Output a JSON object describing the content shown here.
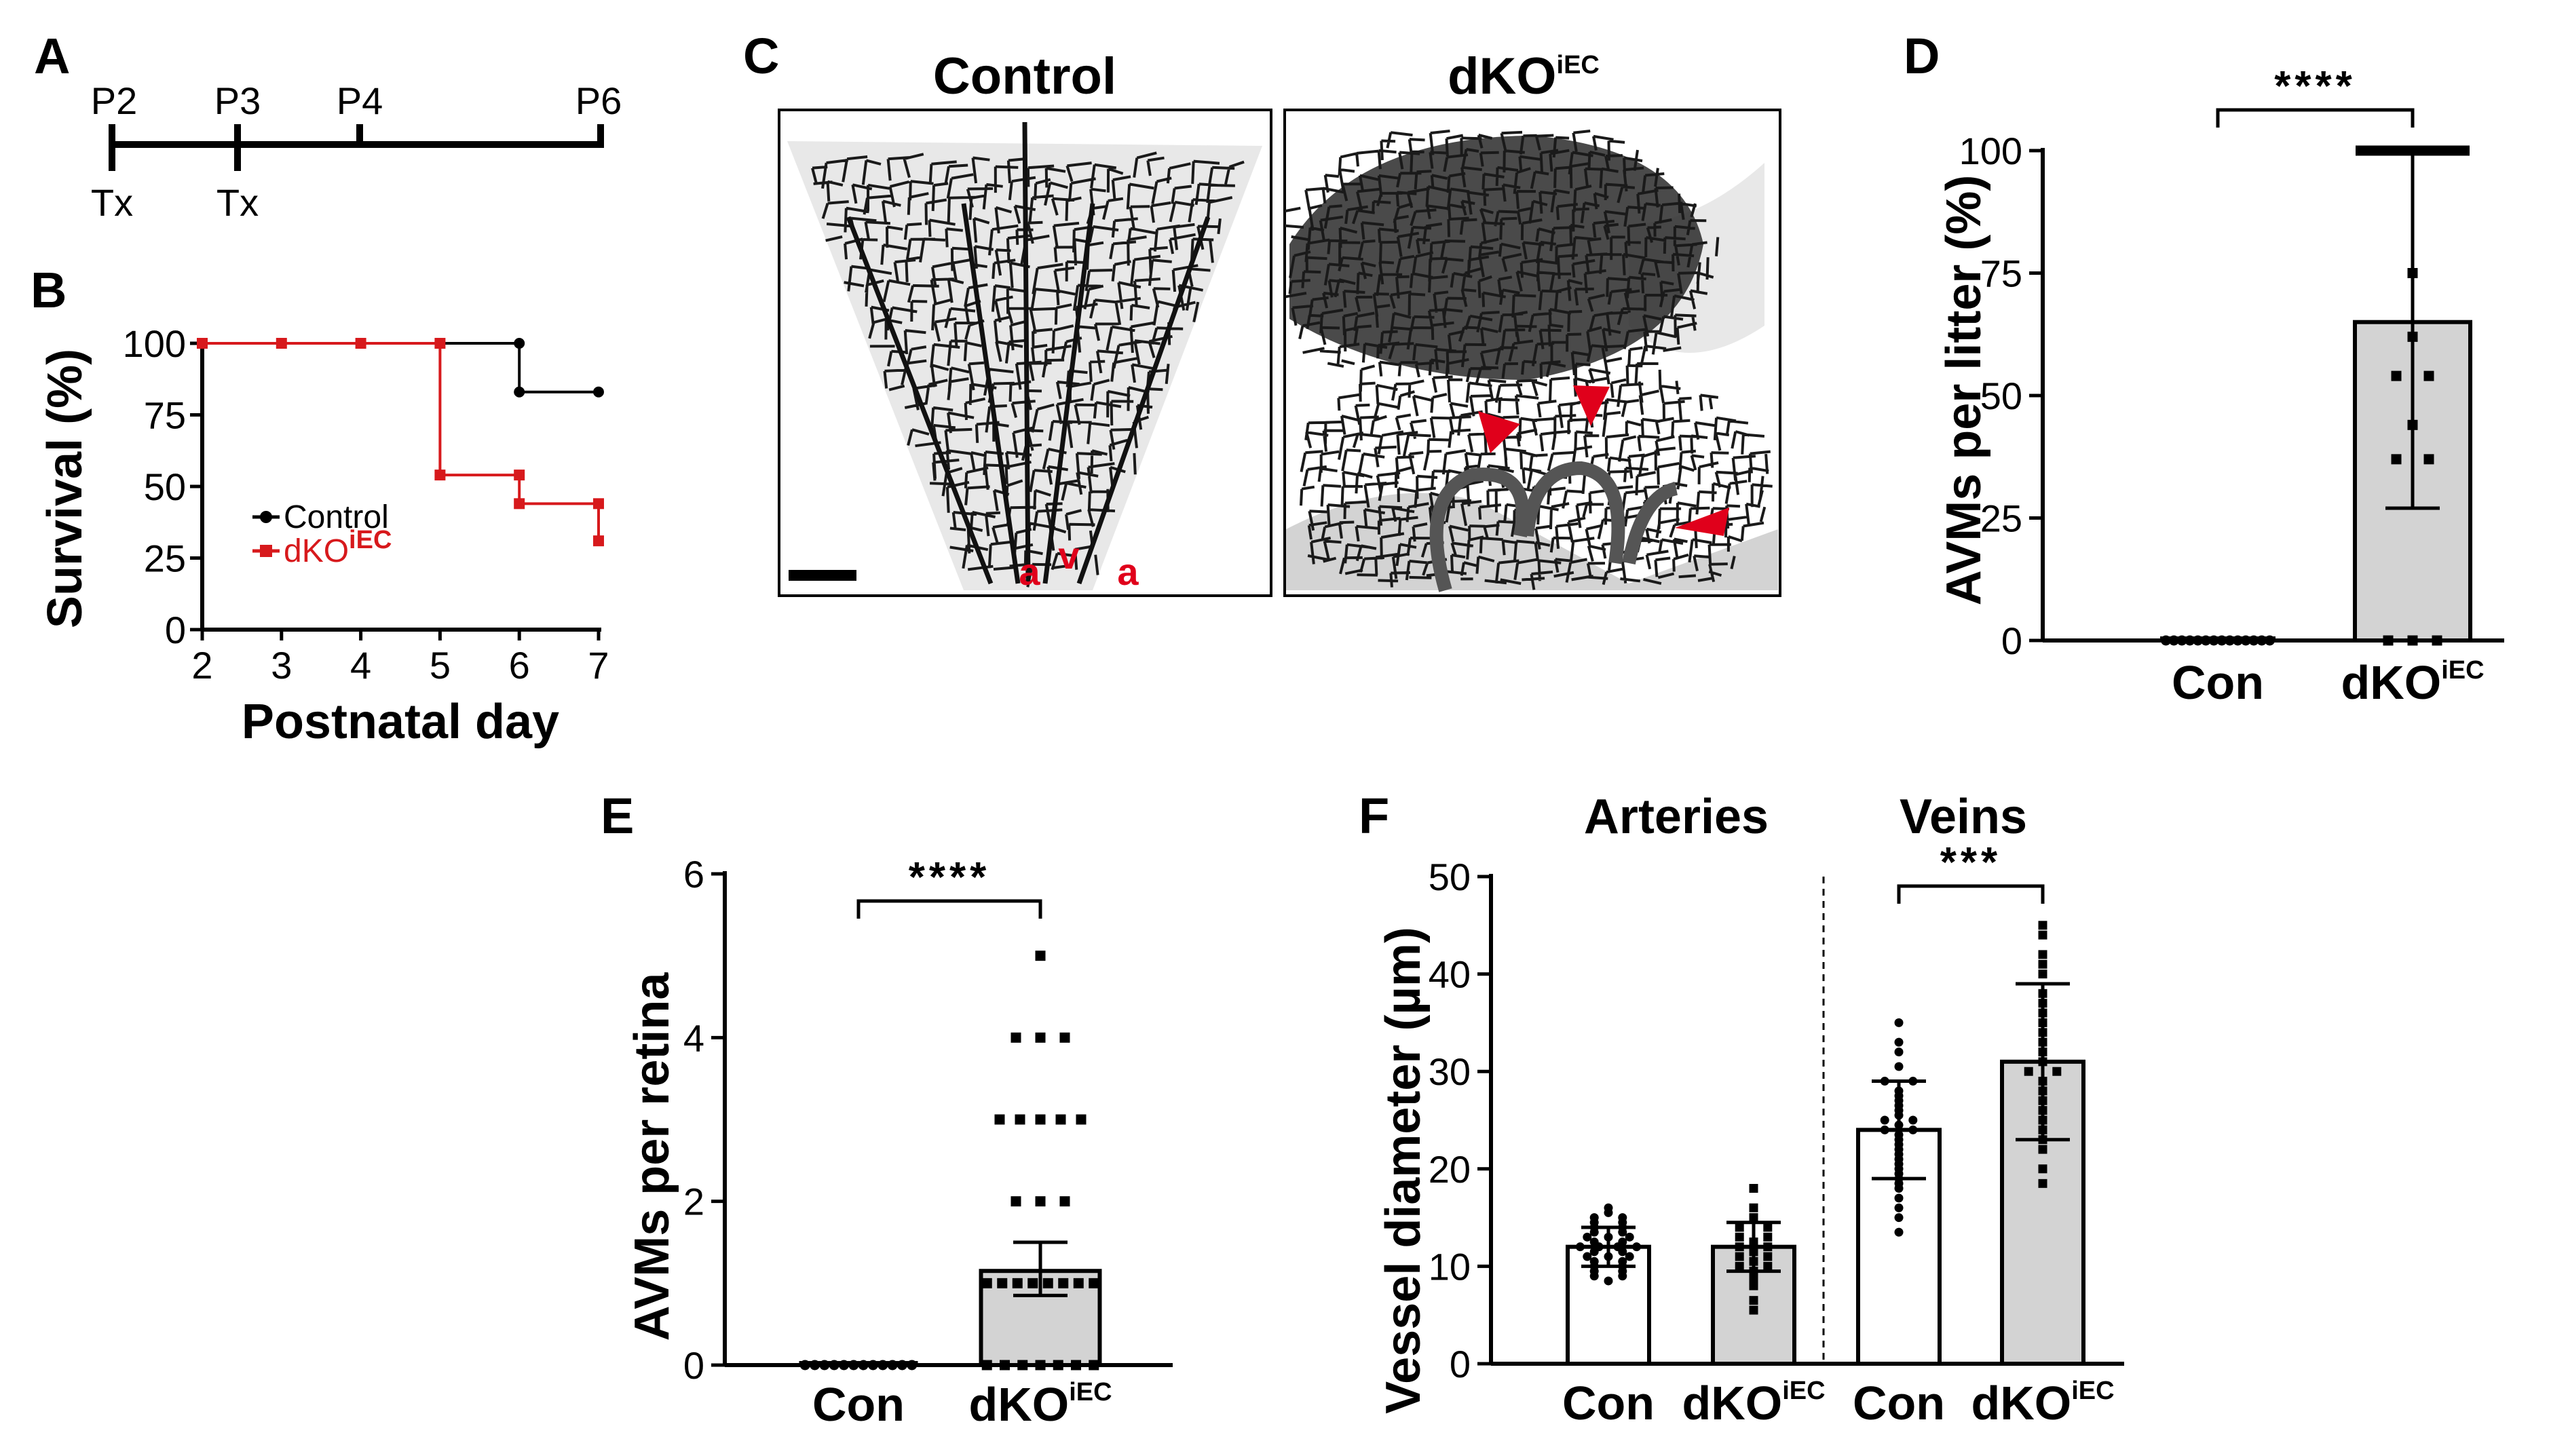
{
  "panels": {
    "A": {
      "letter": "A",
      "timepoints": [
        "P2",
        "P3",
        "P4",
        "P6"
      ],
      "treatment_label": "Tx",
      "treatment_days": [
        "P2",
        "P3"
      ]
    },
    "C": {
      "letter": "C",
      "control_title": "Control",
      "dko_title_main": "dKO",
      "dko_title_sup": "iEC",
      "vessel_labels": [
        "a",
        "v",
        "a"
      ]
    }
  },
  "colors": {
    "control": "#000000",
    "dko": "#d7191c",
    "bar_fill_dko": "#d3d3d3",
    "arrow": "#e0001b"
  },
  "chart_data": [
    {
      "id": "B",
      "letter": "B",
      "type": "line",
      "subtype": "step",
      "title": "",
      "xlabel": "Postnatal day",
      "ylabel": "Survival (%)",
      "xlim": [
        2,
        7
      ],
      "ylim": [
        0,
        100
      ],
      "xticks": [
        2,
        3,
        4,
        5,
        6,
        7
      ],
      "yticks": [
        0,
        25,
        50,
        75,
        100
      ],
      "legend_position": "center-left",
      "series": [
        {
          "name": "Control",
          "color": "#000000",
          "marker": "circle",
          "points": [
            [
              2,
              100
            ],
            [
              3,
              100
            ],
            [
              4,
              100
            ],
            [
              5,
              100
            ],
            [
              6,
              100
            ],
            [
              6,
              83
            ],
            [
              7,
              83
            ]
          ]
        },
        {
          "name": "dKO",
          "name_sup": "iEC",
          "color": "#d7191c",
          "marker": "square",
          "points": [
            [
              2,
              100
            ],
            [
              3,
              100
            ],
            [
              4,
              100
            ],
            [
              5,
              100
            ],
            [
              5,
              54
            ],
            [
              6,
              54
            ],
            [
              6,
              44
            ],
            [
              7,
              44
            ],
            [
              7,
              31
            ]
          ]
        }
      ]
    },
    {
      "id": "D",
      "letter": "D",
      "type": "bar",
      "title": "",
      "xlabel": "",
      "ylabel": "AVMs per litter (%)",
      "ylim": [
        0,
        100
      ],
      "yticks": [
        0,
        25,
        50,
        75,
        100
      ],
      "significance": "****",
      "groups": [
        {
          "label": "Con",
          "label_sup": "",
          "mean": 0,
          "error_low": 0,
          "error_high": 0,
          "points": [
            0,
            0,
            0,
            0,
            0,
            0,
            0,
            0,
            0,
            0,
            0,
            0,
            0,
            0
          ],
          "marker": "circle",
          "fill": "#ffffff"
        },
        {
          "label": "dKO",
          "label_sup": "iEC",
          "mean": 65,
          "error_low": 27,
          "error_high": 100,
          "points": [
            100,
            100,
            100,
            100,
            100,
            100,
            100,
            100,
            100,
            100,
            100,
            100,
            100,
            75,
            62,
            54,
            54,
            44,
            37,
            37,
            0,
            0,
            0
          ],
          "marker": "square",
          "fill": "#d3d3d3"
        }
      ]
    },
    {
      "id": "E",
      "letter": "E",
      "type": "bar",
      "title": "",
      "xlabel": "",
      "ylabel": "AVMs per retina",
      "ylim": [
        0,
        6
      ],
      "yticks": [
        0,
        2,
        4,
        6
      ],
      "significance": "****",
      "groups": [
        {
          "label": "Con",
          "label_sup": "",
          "mean": 0,
          "error_low": 0,
          "error_high": 0,
          "points": [
            0,
            0,
            0,
            0,
            0,
            0,
            0,
            0,
            0,
            0,
            0,
            0
          ],
          "marker": "circle",
          "fill": "#ffffff"
        },
        {
          "label": "dKO",
          "label_sup": "iEC",
          "mean": 1.15,
          "error_low": 0.85,
          "error_high": 1.5,
          "points": [
            5,
            4,
            4,
            4,
            3,
            3,
            3,
            3,
            3,
            2,
            2,
            2,
            1,
            1,
            1,
            1,
            1,
            1,
            1,
            1,
            0,
            0,
            0,
            0,
            0,
            0,
            0
          ],
          "marker": "square",
          "fill": "#d3d3d3"
        }
      ]
    },
    {
      "id": "F",
      "letter": "F",
      "type": "bar",
      "title": "",
      "xlabel": "",
      "ylabel": "Vessel diameter (µm)",
      "ylim": [
        0,
        50
      ],
      "yticks": [
        0,
        10,
        20,
        30,
        40,
        50
      ],
      "group_titles": [
        "Arteries",
        "Veins"
      ],
      "significance": "***",
      "significance_between": [
        2,
        3
      ],
      "groups": [
        {
          "label": "Con",
          "label_sup": "",
          "mean": 12,
          "error_low": 10,
          "error_high": 14,
          "points": [
            16,
            15.5,
            15,
            15,
            14.5,
            14.5,
            14,
            14,
            13.5,
            13.5,
            13,
            13,
            13,
            12.5,
            12.5,
            12,
            12,
            12,
            12,
            11.5,
            11.5,
            11,
            11,
            11,
            10.5,
            10.5,
            10,
            10,
            9.5,
            9.5,
            9,
            9,
            8.5
          ],
          "marker": "circle",
          "fill": "#ffffff"
        },
        {
          "label": "dKO",
          "label_sup": "iEC",
          "mean": 12,
          "error_low": 9.5,
          "error_high": 14.5,
          "points": [
            18,
            16,
            15,
            14,
            14,
            13,
            13,
            12.5,
            12,
            12,
            11.5,
            11,
            11,
            10.5,
            10,
            10,
            9.5,
            9,
            8.5,
            8,
            6.5,
            5.5
          ],
          "marker": "square",
          "fill": "#d3d3d3"
        },
        {
          "label": "Con",
          "label_sup": "",
          "mean": 24,
          "error_low": 19,
          "error_high": 29,
          "points": [
            35,
            33,
            32,
            30.5,
            29,
            29,
            28,
            27.5,
            27,
            26.5,
            26,
            25.5,
            25,
            25,
            24.5,
            24,
            24,
            23.5,
            23,
            22.5,
            22,
            21.5,
            21,
            20.5,
            20,
            19.5,
            19,
            18.5,
            18,
            17,
            16,
            15,
            13.5
          ],
          "marker": "circle",
          "fill": "#ffffff"
        },
        {
          "label": "dKO",
          "label_sup": "iEC",
          "mean": 31,
          "error_low": 23,
          "error_high": 39,
          "points": [
            45,
            44,
            42,
            41,
            40,
            38,
            37,
            36,
            35,
            34,
            33,
            32,
            31,
            30,
            30,
            29,
            28,
            27,
            26,
            25,
            24,
            23,
            22,
            20,
            18.5
          ],
          "marker": "square",
          "fill": "#d3d3d3"
        }
      ]
    }
  ]
}
